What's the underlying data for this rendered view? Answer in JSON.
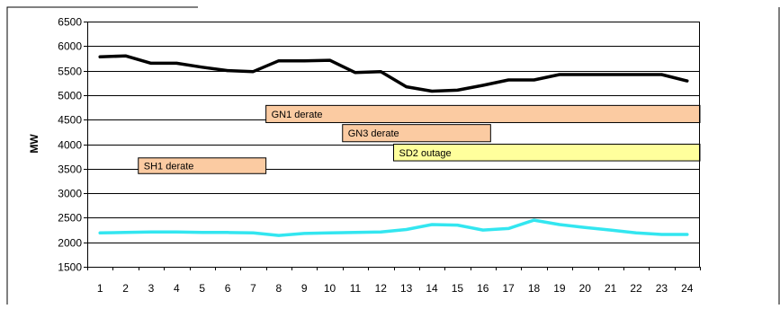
{
  "chart_data": {
    "type": "line",
    "ylabel": "MW",
    "xlabel": "",
    "ylim": [
      1500,
      6500
    ],
    "yticks": [
      1500,
      2000,
      2500,
      3000,
      3500,
      4000,
      4500,
      5000,
      5500,
      6000,
      6500
    ],
    "x": [
      1,
      2,
      3,
      4,
      5,
      6,
      7,
      8,
      9,
      10,
      11,
      12,
      13,
      14,
      15,
      16,
      17,
      18,
      19,
      20,
      21,
      22,
      23,
      24
    ],
    "grid": true,
    "series": [
      {
        "color": "#000000",
        "values": [
          5780,
          5800,
          5650,
          5650,
          5570,
          5500,
          5480,
          5700,
          5700,
          5710,
          5460,
          5480,
          5170,
          5080,
          5100,
          5200,
          5310,
          5310,
          5420,
          5420,
          5420,
          5420,
          5420,
          5290
        ]
      },
      {
        "color": "#33e6f0",
        "values": [
          2190,
          2200,
          2210,
          2210,
          2200,
          2200,
          2190,
          2140,
          2180,
          2190,
          2200,
          2210,
          2260,
          2360,
          2350,
          2250,
          2280,
          2450,
          2360,
          2300,
          2250,
          2190,
          2160,
          2160
        ]
      }
    ],
    "annotations": [
      {
        "label": "GN1 derate",
        "x_start": 7.5,
        "x_end": 24.5,
        "y_low": 4440,
        "y_high": 4790,
        "color": "#fbcba2"
      },
      {
        "label": "GN3 derate",
        "x_start": 10.5,
        "x_end": 16.3,
        "y_low": 4050,
        "y_high": 4400,
        "color": "#fbcba2"
      },
      {
        "label": "SD2 outage",
        "x_start": 12.5,
        "x_end": 24.5,
        "y_low": 3660,
        "y_high": 4000,
        "color": "#ffff9c"
      },
      {
        "label": "SH1 derate",
        "x_start": 2.5,
        "x_end": 7.5,
        "y_low": 3400,
        "y_high": 3720,
        "color": "#fbcba2"
      }
    ]
  }
}
